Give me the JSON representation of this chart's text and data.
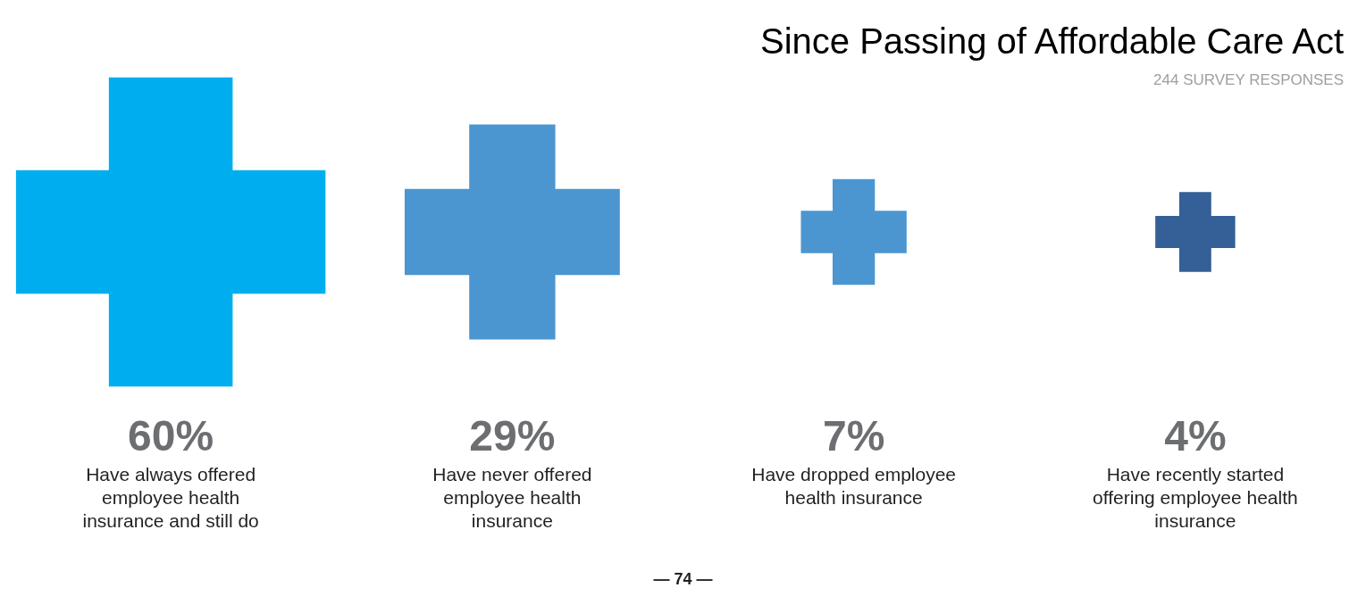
{
  "chart_data": {
    "type": "other",
    "title": "Since Passing of Affordable Care Act",
    "subtitle": "244 SURVEY RESPONSES",
    "categories": [
      "Have always offered employee health insurance and still do",
      "Have never offered employee health insurance",
      "Have dropped employee health insurance",
      "Have recently started offering employee health insurance"
    ],
    "values": [
      60,
      29,
      7,
      4
    ],
    "value_labels": [
      "60%",
      "29%",
      "7%",
      "4%"
    ],
    "colors": [
      "#00aeef",
      "#4b96d1",
      "#4b96d1",
      "#345f97"
    ],
    "annotations": [
      "— 74 —"
    ]
  }
}
